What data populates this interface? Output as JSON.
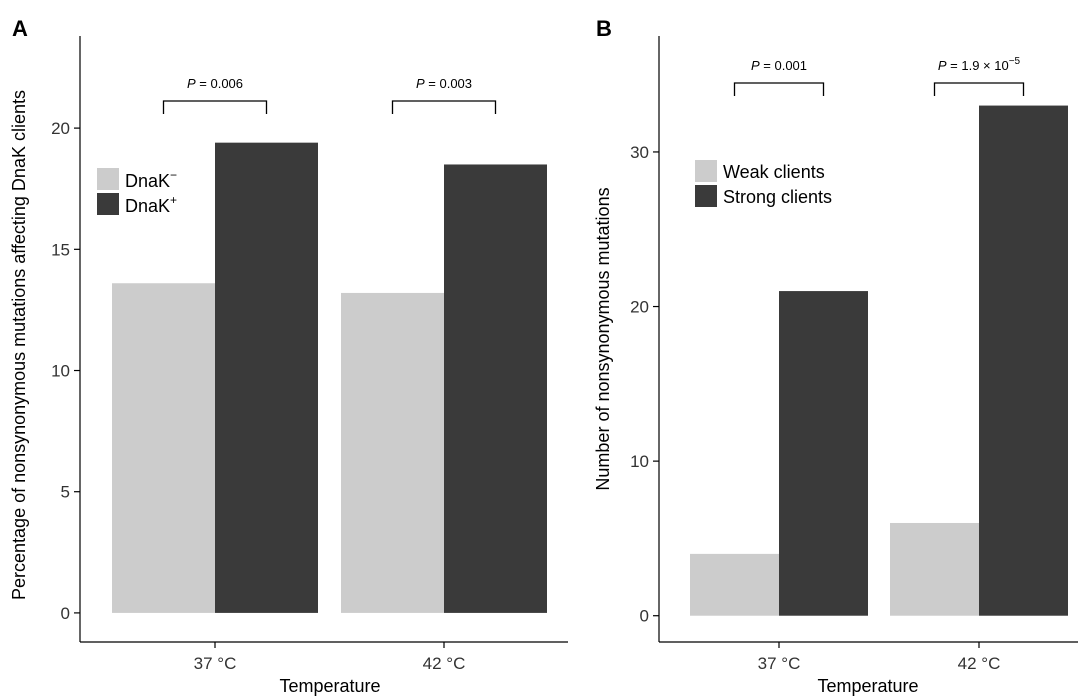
{
  "colors": {
    "light_bar": "#cccccc",
    "dark_bar": "#3a3a3a",
    "axis": "#000000",
    "tick_text": "#333333"
  },
  "chart_data": [
    {
      "panel": "A",
      "type": "bar",
      "categories": [
        "37 °C",
        "42 °C"
      ],
      "series": [
        {
          "name": "DnaK",
          "superscript": "−",
          "values": [
            13.6,
            13.2
          ]
        },
        {
          "name": "DnaK",
          "superscript": "+",
          "values": [
            19.4,
            18.5
          ]
        }
      ],
      "xlabel": "Temperature",
      "ylabel": "Percentage of nonsynonymous mutations affecting DnaK clients",
      "ylim": [
        -1.2,
        23.8
      ],
      "yticks": [
        0,
        5,
        10,
        15,
        20
      ],
      "grid": false,
      "legend_position": "top-left",
      "annotations": [
        {
          "category_index": 0,
          "p_label": "P",
          "p_value": "= 0.006"
        },
        {
          "category_index": 1,
          "p_label": "P",
          "p_value": "= 0.003"
        }
      ]
    },
    {
      "panel": "B",
      "type": "bar",
      "categories": [
        "37 °C",
        "42 °C"
      ],
      "series": [
        {
          "name": "Weak clients",
          "values": [
            4,
            6
          ]
        },
        {
          "name": "Strong clients",
          "values": [
            21,
            33
          ]
        }
      ],
      "xlabel": "Temperature",
      "ylabel": "Number of nonsynonymous mutations",
      "ylim": [
        -1.7,
        37.5
      ],
      "yticks": [
        0,
        10,
        20,
        30
      ],
      "grid": false,
      "legend_position": "top-left",
      "annotations": [
        {
          "category_index": 0,
          "p_label": "P",
          "p_value": "= 0.001"
        },
        {
          "category_index": 1,
          "p_label": "P",
          "p_value": "= 1.9 × 10",
          "p_exponent": "−5"
        }
      ]
    }
  ]
}
